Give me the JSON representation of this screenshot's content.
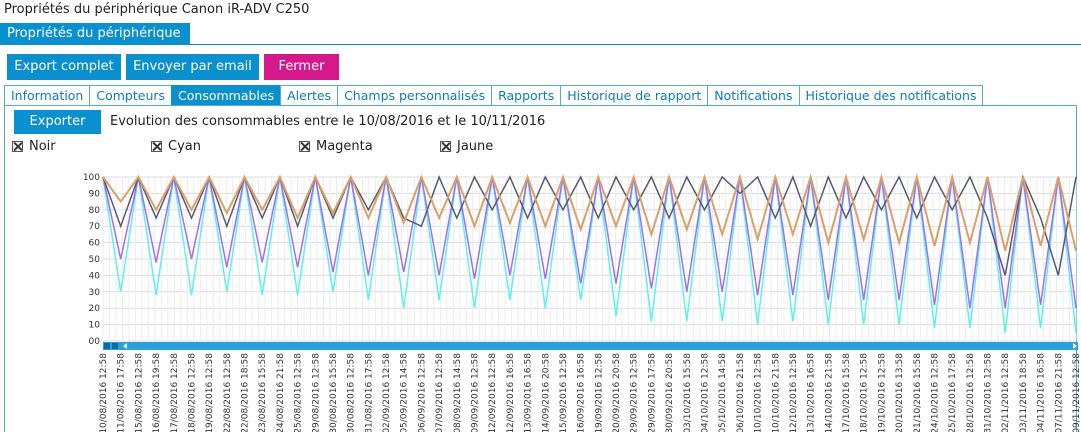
{
  "window_title": "Propriétés du périphérique Canon iR-ADV C250",
  "section_tab": "Propriétés du périphérique",
  "toolbar": {
    "export_all": "Export complet",
    "send_email": "Envoyer par email",
    "close": "Fermer"
  },
  "tabs": [
    "Information",
    "Compteurs",
    "Consommables",
    "Alertes",
    "Champs personnalisés",
    "Rapports",
    "Historique de rapport",
    "Notifications",
    "Historique des notifications"
  ],
  "active_tab": "Consommables",
  "content": {
    "export_label": "Exporter",
    "period_text": "Evolution des consommables entre le 10/08/2016 et le 10/11/2016"
  },
  "legend": [
    {
      "label": "Noir",
      "checked": true,
      "color": "#555a6e"
    },
    {
      "label": "Cyan",
      "checked": true,
      "color": "#5ff0ee"
    },
    {
      "label": "Magenta",
      "checked": true,
      "color": "#a070f0"
    },
    {
      "label": "Jaune",
      "checked": true,
      "color": "#d9a068"
    }
  ],
  "colors": {
    "accent": "#0a8fcf",
    "close_button": "#d4198c"
  },
  "chart_data": {
    "type": "line",
    "ylim": [
      0,
      100
    ],
    "yticks": [
      "100",
      "90",
      "80",
      "70",
      "60",
      "50",
      "40",
      "30",
      "20",
      "10",
      "00"
    ],
    "x": [
      "10/08/2016 12:58",
      "11/08/2016 17:58",
      "15/08/2016 12:58",
      "16/08/2016 19:58",
      "17/08/2016 12:58",
      "18/08/2016 12:58",
      "19/08/2016 12:58",
      "22/08/2016 12:58",
      "22/08/2016 18:58",
      "23/08/2016 15:58",
      "24/08/2016 21:58",
      "25/08/2016 12:58",
      "29/08/2016 12:58",
      "30/08/2016 15:58",
      "30/08/2016 12:58",
      "31/08/2016 17:58",
      "02/09/2016 12:58",
      "05/09/2016 14:58",
      "06/09/2016 12:58",
      "07/09/2016 12:58",
      "08/09/2016 14:58",
      "09/09/2016 12:58",
      "12/09/2016 12:58",
      "12/09/2016 16:58",
      "13/09/2016 16:58",
      "14/09/2016 20:58",
      "15/09/2016 12:58",
      "16/09/2016 16:58",
      "19/09/2016 12:58",
      "20/09/2016 20:58",
      "29/09/2016 12:58",
      "29/09/2016 17:58",
      "30/09/2016 20:58",
      "03/10/2016 15:58",
      "04/10/2016 12:58",
      "05/10/2016 14:58",
      "06/10/2016 21:58",
      "10/10/2016 12:58",
      "10/10/2016 21:58",
      "12/10/2016 12:58",
      "13/10/2016 16:58",
      "14/10/2016 21:58",
      "17/10/2016 15:58",
      "18/10/2016 12:58",
      "19/10/2016 12:58",
      "20/10/2016 13:58",
      "21/10/2016 15:58",
      "24/10/2016 12:58",
      "25/10/2016 17:58",
      "28/10/2016 12:58",
      "31/10/2016 12:58",
      "02/11/2016 12:58",
      "03/11/2016 18:58",
      "04/11/2016 16:58",
      "07/11/2016 21:58",
      "09/11/2016 12:58"
    ],
    "series": [
      {
        "name": "Noir",
        "color": "#555a6e",
        "values": [
          100,
          70,
          100,
          75,
          100,
          75,
          100,
          70,
          100,
          75,
          100,
          70,
          100,
          75,
          100,
          80,
          100,
          75,
          70,
          100,
          75,
          100,
          80,
          100,
          75,
          100,
          80,
          100,
          75,
          100,
          80,
          100,
          75,
          100,
          80,
          100,
          90,
          100,
          75,
          100,
          70,
          100,
          75,
          100,
          80,
          100,
          75,
          100,
          80,
          100,
          75,
          40,
          100,
          75,
          40,
          100
        ]
      },
      {
        "name": "Cyan",
        "color": "#5ff0ee",
        "values": [
          100,
          30,
          100,
          28,
          100,
          28,
          100,
          30,
          100,
          28,
          100,
          28,
          100,
          30,
          100,
          25,
          100,
          20,
          100,
          25,
          100,
          20,
          100,
          25,
          100,
          20,
          100,
          25,
          100,
          15,
          100,
          12,
          100,
          12,
          100,
          12,
          100,
          10,
          100,
          12,
          100,
          10,
          100,
          10,
          100,
          10,
          100,
          8,
          100,
          8,
          100,
          5,
          100,
          8,
          100,
          5
        ]
      },
      {
        "name": "Magenta",
        "color": "#a070f0",
        "values": [
          100,
          50,
          100,
          48,
          100,
          50,
          100,
          45,
          100,
          48,
          100,
          45,
          100,
          42,
          100,
          40,
          100,
          42,
          100,
          40,
          100,
          38,
          100,
          40,
          100,
          38,
          100,
          35,
          100,
          35,
          100,
          32,
          100,
          30,
          100,
          30,
          100,
          28,
          100,
          28,
          100,
          25,
          100,
          25,
          100,
          25,
          100,
          22,
          100,
          20,
          100,
          20,
          100,
          22,
          100,
          20
        ]
      },
      {
        "name": "Jaune",
        "color": "#d9a068",
        "values": [
          100,
          85,
          100,
          80,
          100,
          80,
          100,
          78,
          100,
          80,
          100,
          75,
          100,
          78,
          100,
          75,
          100,
          72,
          100,
          75,
          100,
          70,
          100,
          72,
          100,
          70,
          100,
          68,
          100,
          70,
          100,
          65,
          100,
          68,
          100,
          65,
          100,
          62,
          100,
          65,
          100,
          60,
          100,
          62,
          100,
          60,
          100,
          58,
          100,
          60,
          100,
          55,
          100,
          58,
          100,
          55
        ]
      }
    ]
  }
}
